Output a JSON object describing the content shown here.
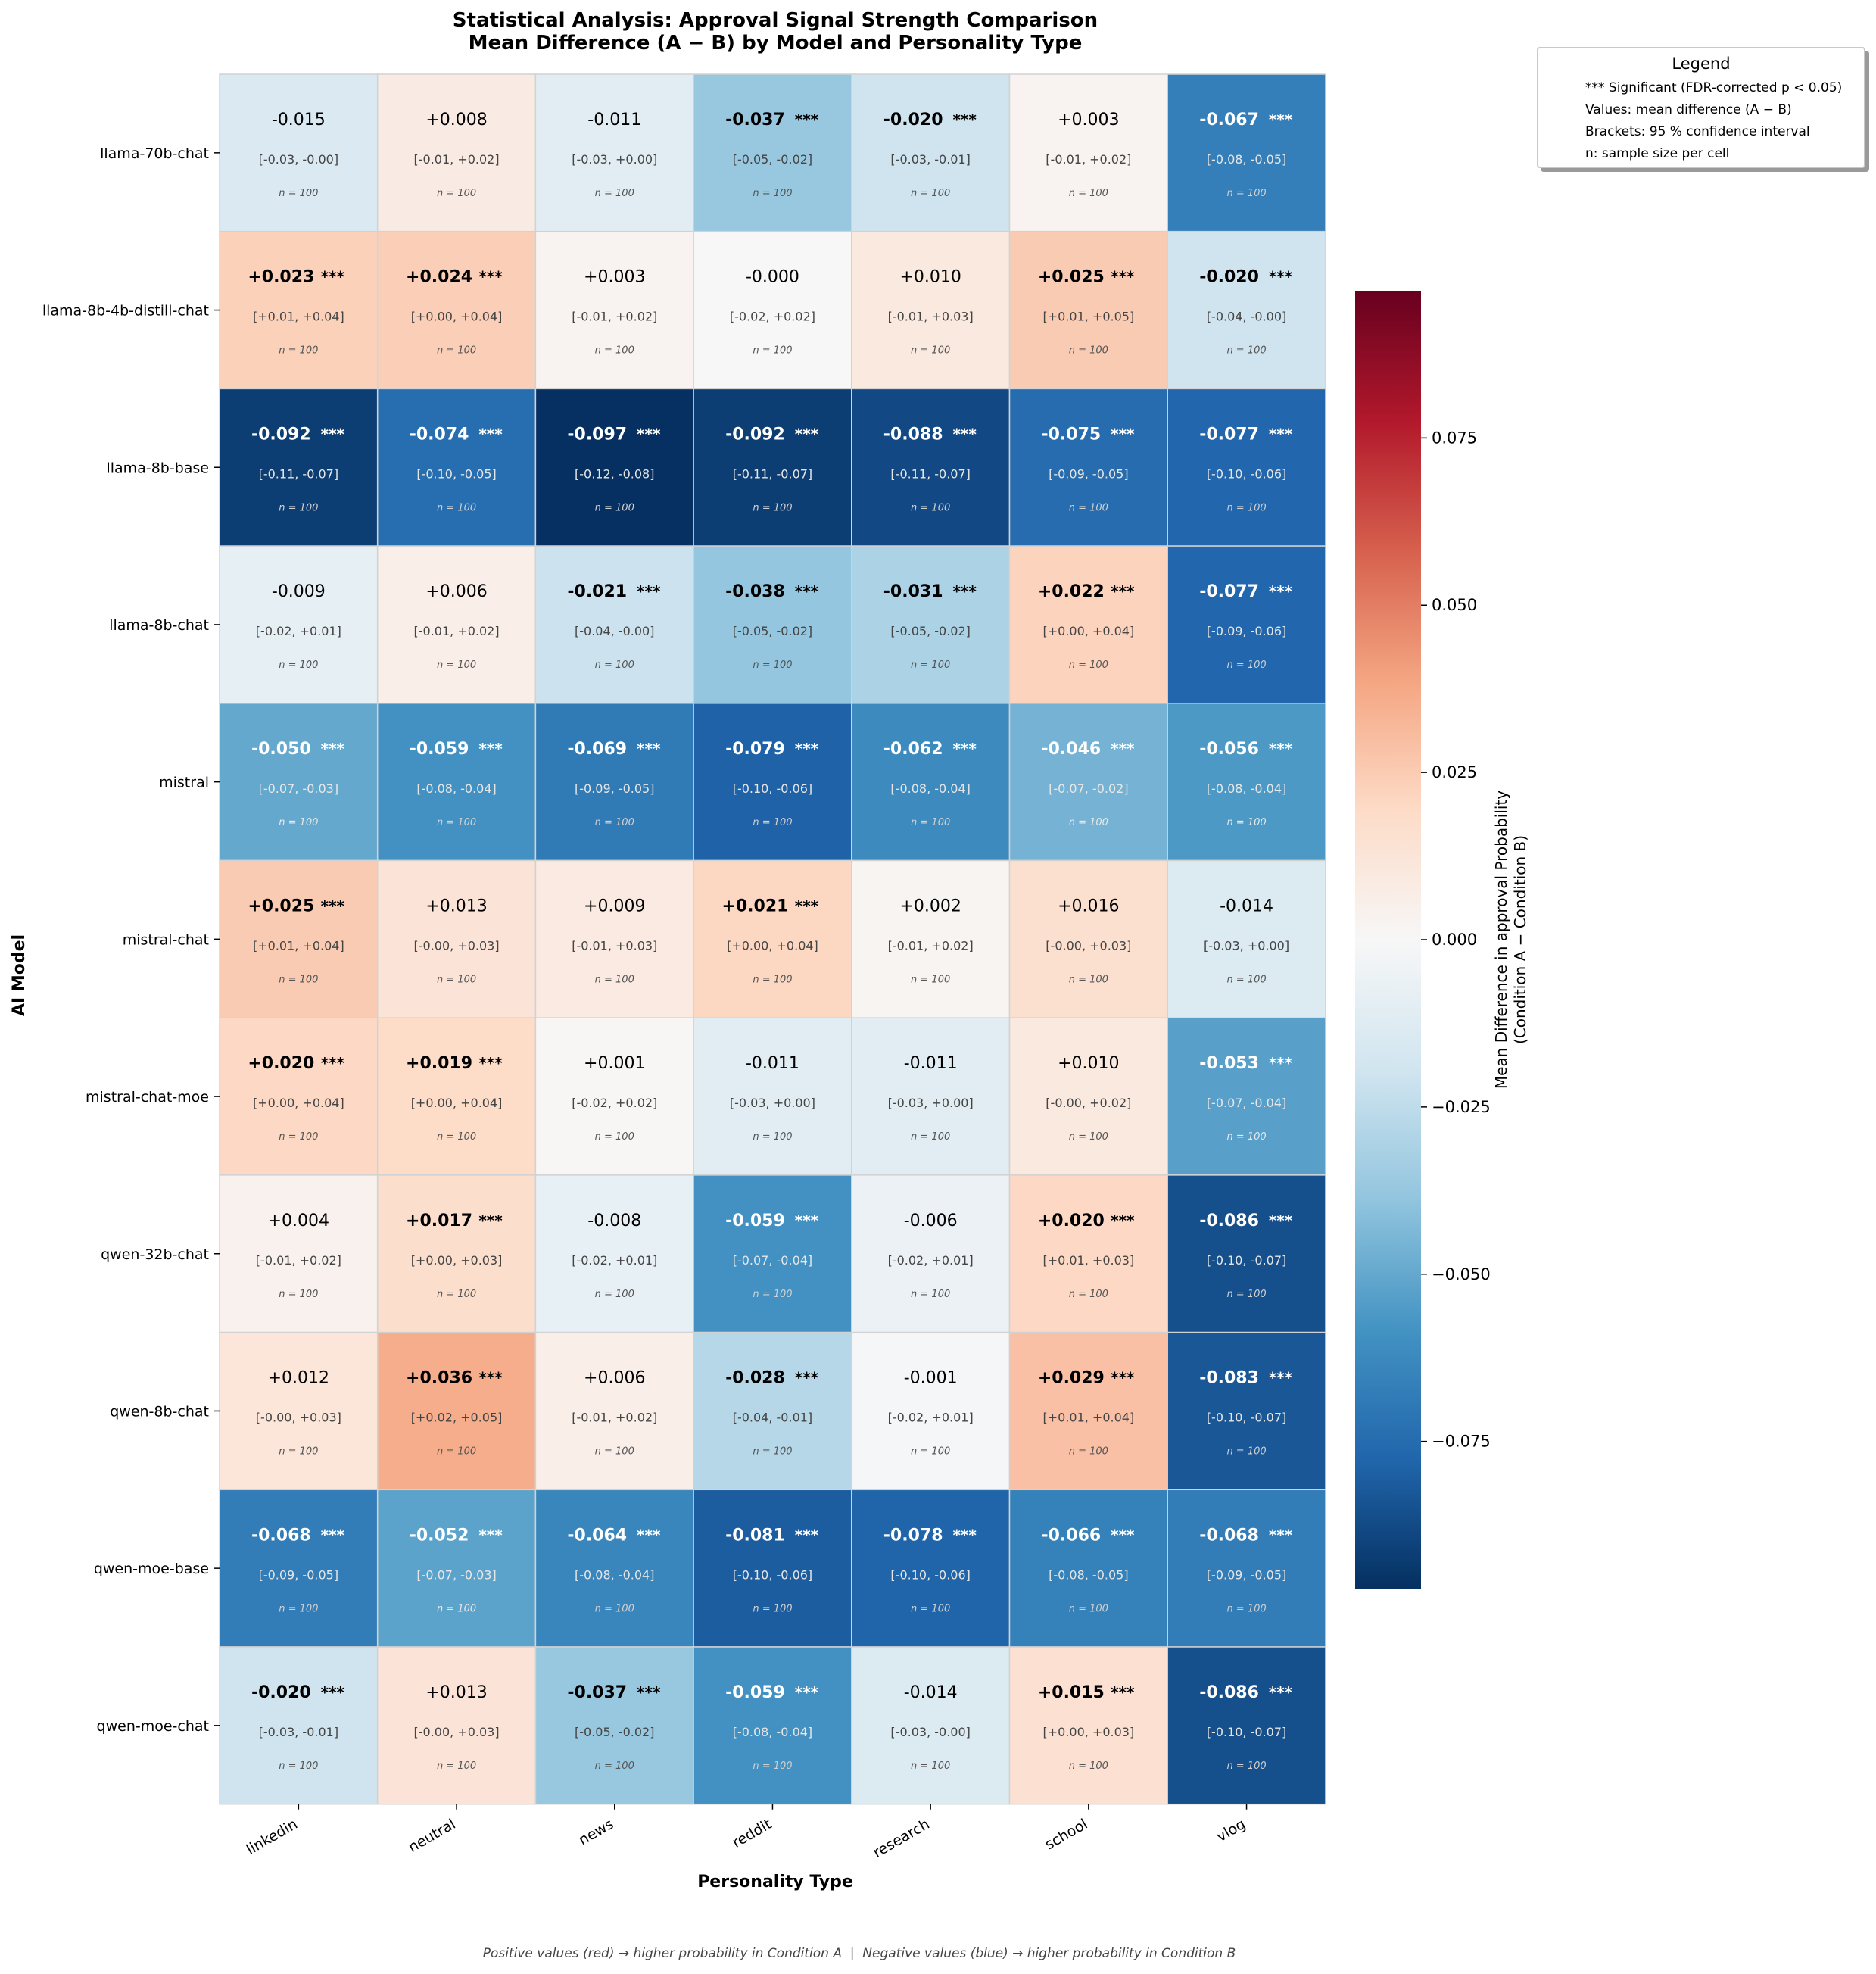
{
  "chart_data": {
    "type": "heatmap",
    "title": "Statistical Analysis: Approval Signal Strength Comparison",
    "subtitle": "Mean Difference (A − B) by Model and Personality Type",
    "xlabel": "Personality Type",
    "ylabel": "AI Model",
    "columns": [
      "linkedin",
      "neutral",
      "news",
      "reddit",
      "research",
      "school",
      "vlog"
    ],
    "rows": [
      "llama-70b-chat",
      "llama-8b-4b-distill-chat",
      "llama-8b-base",
      "llama-8b-chat",
      "mistral",
      "mistral-chat",
      "mistral-chat-moe",
      "qwen-32b-chat",
      "qwen-8b-chat",
      "qwen-moe-base",
      "qwen-moe-chat"
    ],
    "values": [
      [
        "-0.015",
        "+0.008",
        "-0.011",
        "-0.037",
        "-0.020",
        "+0.003",
        "-0.067"
      ],
      [
        "+0.023",
        "+0.024",
        "+0.003",
        "-0.000",
        "+0.010",
        "+0.025",
        "-0.020"
      ],
      [
        "-0.092",
        "-0.074",
        "-0.097",
        "-0.092",
        "-0.088",
        "-0.075",
        "-0.077"
      ],
      [
        "-0.009",
        "+0.006",
        "-0.021",
        "-0.038",
        "-0.031",
        "+0.022",
        "-0.077"
      ],
      [
        "-0.050",
        "-0.059",
        "-0.069",
        "-0.079",
        "-0.062",
        "-0.046",
        "-0.056"
      ],
      [
        "+0.025",
        "+0.013",
        "+0.009",
        "+0.021",
        "+0.002",
        "+0.016",
        "-0.014"
      ],
      [
        "+0.020",
        "+0.019",
        "+0.001",
        "-0.011",
        "-0.011",
        "+0.010",
        "-0.053"
      ],
      [
        "+0.004",
        "+0.017",
        "-0.008",
        "-0.059",
        "-0.006",
        "+0.020",
        "-0.086"
      ],
      [
        "+0.012",
        "+0.036",
        "+0.006",
        "-0.028",
        "-0.001",
        "+0.029",
        "-0.083"
      ],
      [
        "-0.068",
        "-0.052",
        "-0.064",
        "-0.081",
        "-0.078",
        "-0.066",
        "-0.068"
      ],
      [
        "-0.020",
        "+0.013",
        "-0.037",
        "-0.059",
        "-0.014",
        "+0.015",
        "-0.086"
      ]
    ],
    "ci": [
      [
        "[-0.03, -0.00]",
        "[-0.01, +0.02]",
        "[-0.03, +0.00]",
        "[-0.05, -0.02]",
        "[-0.03, -0.01]",
        "[-0.01, +0.02]",
        "[-0.08, -0.05]"
      ],
      [
        "[+0.01, +0.04]",
        "[+0.00, +0.04]",
        "[-0.01, +0.02]",
        "[-0.02, +0.02]",
        "[-0.01, +0.03]",
        "[+0.01, +0.05]",
        "[-0.04, -0.00]"
      ],
      [
        "[-0.11, -0.07]",
        "[-0.10, -0.05]",
        "[-0.12, -0.08]",
        "[-0.11, -0.07]",
        "[-0.11, -0.07]",
        "[-0.09, -0.05]",
        "[-0.10, -0.06]"
      ],
      [
        "[-0.02, +0.01]",
        "[-0.01, +0.02]",
        "[-0.04, -0.00]",
        "[-0.05, -0.02]",
        "[-0.05, -0.02]",
        "[+0.00, +0.04]",
        "[-0.09, -0.06]"
      ],
      [
        "[-0.07, -0.03]",
        "[-0.08, -0.04]",
        "[-0.09, -0.05]",
        "[-0.10, -0.06]",
        "[-0.08, -0.04]",
        "[-0.07, -0.02]",
        "[-0.08, -0.04]"
      ],
      [
        "[+0.01, +0.04]",
        "[-0.00, +0.03]",
        "[-0.01, +0.03]",
        "[+0.00, +0.04]",
        "[-0.01, +0.02]",
        "[-0.00, +0.03]",
        "[-0.03, +0.00]"
      ],
      [
        "[+0.00, +0.04]",
        "[+0.00, +0.04]",
        "[-0.02, +0.02]",
        "[-0.03, +0.00]",
        "[-0.03, +0.00]",
        "[-0.00, +0.02]",
        "[-0.07, -0.04]"
      ],
      [
        "[-0.01, +0.02]",
        "[+0.00, +0.03]",
        "[-0.02, +0.01]",
        "[-0.07, -0.04]",
        "[-0.02, +0.01]",
        "[+0.01, +0.03]",
        "[-0.10, -0.07]"
      ],
      [
        "[-0.00, +0.03]",
        "[+0.02, +0.05]",
        "[-0.01, +0.02]",
        "[-0.04, -0.01]",
        "[-0.02, +0.01]",
        "[+0.01, +0.04]",
        "[-0.10, -0.07]"
      ],
      [
        "[-0.09, -0.05]",
        "[-0.07, -0.03]",
        "[-0.08, -0.04]",
        "[-0.10, -0.06]",
        "[-0.10, -0.06]",
        "[-0.08, -0.05]",
        "[-0.09, -0.05]"
      ],
      [
        "[-0.03, -0.01]",
        "[-0.00, +0.03]",
        "[-0.05, -0.02]",
        "[-0.08, -0.04]",
        "[-0.03, -0.00]",
        "[+0.00, +0.03]",
        "[-0.10, -0.07]"
      ]
    ],
    "significant": [
      [
        false,
        false,
        false,
        true,
        true,
        false,
        true
      ],
      [
        true,
        true,
        false,
        false,
        false,
        true,
        true
      ],
      [
        true,
        true,
        true,
        true,
        true,
        true,
        true
      ],
      [
        false,
        false,
        true,
        true,
        true,
        true,
        true
      ],
      [
        true,
        true,
        true,
        true,
        true,
        true,
        true
      ],
      [
        true,
        false,
        false,
        true,
        false,
        false,
        false
      ],
      [
        true,
        true,
        false,
        false,
        false,
        false,
        true
      ],
      [
        false,
        true,
        false,
        true,
        false,
        true,
        true
      ],
      [
        false,
        true,
        false,
        true,
        false,
        true,
        true
      ],
      [
        true,
        true,
        true,
        true,
        true,
        true,
        true
      ],
      [
        true,
        false,
        true,
        true,
        false,
        true,
        true
      ]
    ],
    "sig_marker": "***",
    "n_label": "n = 100",
    "colorbar": {
      "label_line1": "Mean Difference in approval Probability",
      "label_line2": "(Condition A − Condition B)",
      "vmin": -0.097,
      "vmax": 0.097,
      "ticks": [
        0.075,
        0.05,
        0.025,
        0.0,
        -0.025,
        -0.05,
        -0.075
      ],
      "tick_labels": [
        "0.075",
        "0.050",
        "0.025",
        "0.000",
        "−0.025",
        "−0.050",
        "−0.075"
      ],
      "colormap": "RdBu_r"
    },
    "legend": {
      "title": "Legend",
      "lines": [
        "*** Significant (FDR-corrected p < 0.05)",
        "Values: mean difference (A − B)",
        "Brackets: 95 % confidence interval",
        "n: sample size per cell"
      ]
    },
    "footnote": "Positive values (red) → higher probability in Condition A  |  Negative values (blue) → higher probability in Condition B"
  }
}
